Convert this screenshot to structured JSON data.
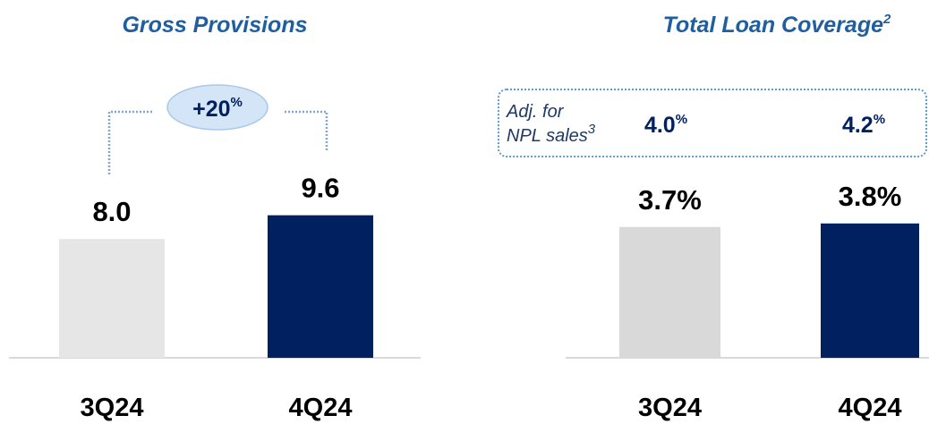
{
  "chart_data": [
    {
      "type": "bar",
      "title": "Gross Provisions",
      "categories": [
        "3Q24",
        "4Q24"
      ],
      "values": [
        8.0,
        9.6
      ],
      "value_labels": [
        "8.0",
        "9.6"
      ],
      "colors": [
        "#e6e6e6",
        "#002060"
      ],
      "ylim": [
        0,
        10
      ],
      "annotation": {
        "text": "+20",
        "unit": "%"
      }
    },
    {
      "type": "bar",
      "title": "Total Loan Coverage",
      "title_note": "2",
      "categories": [
        "3Q24",
        "4Q24"
      ],
      "values": [
        3.7,
        3.8
      ],
      "value_labels": [
        "3.7%",
        "3.8%"
      ],
      "colors": [
        "#d9d9d9",
        "#002060"
      ],
      "ylim": [
        0,
        4.2
      ],
      "adjusted": {
        "label_lines": [
          "Adj. for",
          "NPL sales"
        ],
        "note": "3",
        "values": [
          4.0,
          4.2
        ],
        "value_labels": [
          "4.0",
          "4.2"
        ],
        "unit": "%"
      }
    }
  ]
}
